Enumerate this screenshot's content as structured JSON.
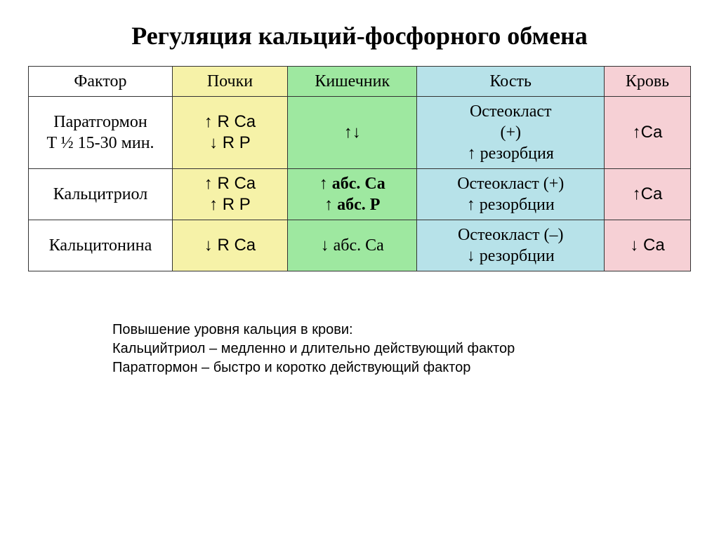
{
  "title": "Регуляция кальций-фосфорного обмена",
  "table": {
    "headers": {
      "factor": "Фактор",
      "kidney": "Почки",
      "gut": "Кишечник",
      "bone": "Кость",
      "blood": "Кровь"
    },
    "rows": [
      {
        "factor_l1": "Паратгормон",
        "factor_l2": "T ½ 15-30 мин.",
        "kidney_l1": "↑ R Ca",
        "kidney_l2": "↓ R P",
        "gut_l1": "↑↓",
        "gut_l2": "",
        "bone_l1": "Остеокласт",
        "bone_l2": "(+)",
        "bone_l3": "↑ резорбция",
        "blood_l1": "↑Ca",
        "blood_l2": ""
      },
      {
        "factor_l1": "Кальцитриол",
        "factor_l2": "",
        "kidney_l1": "↑ R Ca",
        "kidney_l2": "↑ R P",
        "gut_l1": "↑ абс. Ca",
        "gut_l2": "↑ абс. P",
        "bone_l1": "Остеокласт (+)",
        "bone_l2": "↑ резорбции",
        "bone_l3": "",
        "blood_l1": "↑Ca",
        "blood_l2": ""
      },
      {
        "factor_l1": "Кальцитонина",
        "factor_l2": "",
        "kidney_l1": "↓ R Ca",
        "kidney_l2": "",
        "gut_l1": "↓ абс. Ca",
        "gut_l2": "",
        "bone_l1": "Остеокласт (–)",
        "bone_l2": "↓ резорбции",
        "bone_l3": "",
        "blood_l1": "↓ Ca",
        "blood_l2": ""
      }
    ],
    "column_colors": {
      "factor": "#ffffff",
      "kidney": "#f6f2a8",
      "gut": "#9ee8a0",
      "bone": "#b7e2e9",
      "blood": "#f6d0d5"
    },
    "border_color": "#333333",
    "font_sizes": {
      "title": 36,
      "cell": 24,
      "footnote": 20
    }
  },
  "footnote": {
    "l1": "Повышение уровня кальция в крови:",
    "l2": "Кальцийтриол – медленно и длительно действующий фактор",
    "l3": "Паратгормон – быстро и коротко действующий фактор"
  }
}
